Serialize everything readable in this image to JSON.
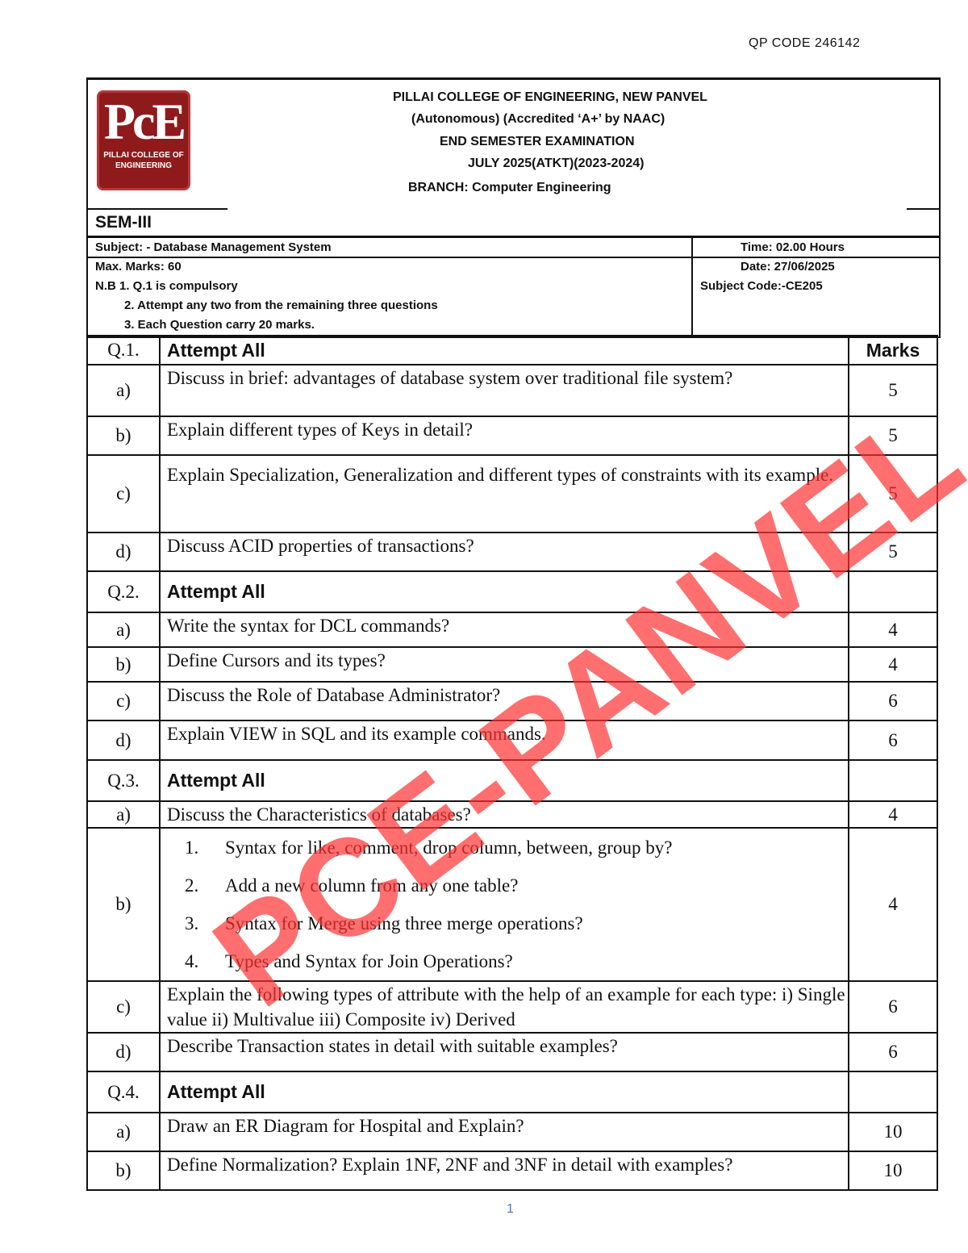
{
  "qp_code": "QP CODE 246142",
  "logo": {
    "letters": "PcE",
    "caption": "PILLAI COLLEGE OF ENGINEERING"
  },
  "header": {
    "college": "PILLAI COLLEGE OF ENGINEERING, NEW PANVEL",
    "accreditation": "(Autonomous) (Accredited ‘A+’ by NAAC)",
    "exam": "END SEMESTER EXAMINATION",
    "session": "JULY 2025(ATKT)(2023-2024)",
    "branch": "BRANCH: Computer Engineering"
  },
  "sem": "SEM-III",
  "meta": {
    "subject": "Subject: - Database Management System",
    "time": "Time: 02.00 Hours",
    "max_marks": "Max. Marks: 60",
    "date": "Date: 27/06/2025",
    "subject_code": "Subject Code:-CE205",
    "nb1": "N.B 1. Q.1 is compulsory",
    "nb2": "2. Attempt any two from the remaining three questions",
    "nb3": "3. Each Question carry 20 marks."
  },
  "marks_header": "Marks",
  "questions": [
    {
      "no": "Q.1.",
      "title": "Attempt All",
      "parts": [
        {
          "label": "a)",
          "text": "Discuss in brief: advantages of database system over traditional file system?",
          "marks": "5"
        },
        {
          "label": "b)",
          "text": "Explain different types of Keys in detail?",
          "marks": "5"
        },
        {
          "label": "c)",
          "text": "Explain Specialization, Generalization and different types of constraints with its example.",
          "marks": "5"
        },
        {
          "label": "d)",
          "text": "Discuss ACID properties of transactions?",
          "marks": "5"
        }
      ]
    },
    {
      "no": "Q.2.",
      "title": "Attempt All",
      "parts": [
        {
          "label": "a)",
          "text": "Write the syntax for DCL commands?",
          "marks": "4"
        },
        {
          "label": "b)",
          "text": "Define Cursors and its types?",
          "marks": "4"
        },
        {
          "label": "c)",
          "text": "Discuss the Role of Database Administrator?",
          "marks": "6"
        },
        {
          "label": "d)",
          "text": "Explain VIEW in SQL and its example commands.",
          "marks": "6"
        }
      ]
    },
    {
      "no": "Q.3.",
      "title": "Attempt All",
      "parts": [
        {
          "label": "a)",
          "text": "Discuss the Characteristics of databases?",
          "marks": "4"
        },
        {
          "label": "b)",
          "items": [
            {
              "n": "1.",
              "text": "Syntax for like, comment, drop column, between, group by?"
            },
            {
              "n": "2.",
              "text": "Add a new column from any one table?"
            },
            {
              "n": "3.",
              "text": "Syntax for Merge using three merge operations?"
            },
            {
              "n": "4.",
              "text": "Types and Syntax for Join Operations?"
            }
          ],
          "marks": "4"
        },
        {
          "label": "c)",
          "text": "Explain the following types of attribute with the help of an example for each type:        i) Single value ii) Multivalue iii) Composite iv) Derived",
          "marks": "6"
        },
        {
          "label": "d)",
          "text": "Describe Transaction states in detail with suitable examples?",
          "marks": "6"
        }
      ]
    },
    {
      "no": "Q.4.",
      "title": "Attempt All",
      "parts": [
        {
          "label": "a)",
          "text": "Draw an ER Diagram for Hospital and Explain?",
          "marks": "10"
        },
        {
          "label": "b)",
          "text": "Define Normalization? Explain 1NF, 2NF and 3NF in detail with examples?",
          "marks": "10"
        }
      ]
    }
  ],
  "watermark": "PCE-PANVEL",
  "watermark_color": "#ff3232",
  "page_number": "1"
}
